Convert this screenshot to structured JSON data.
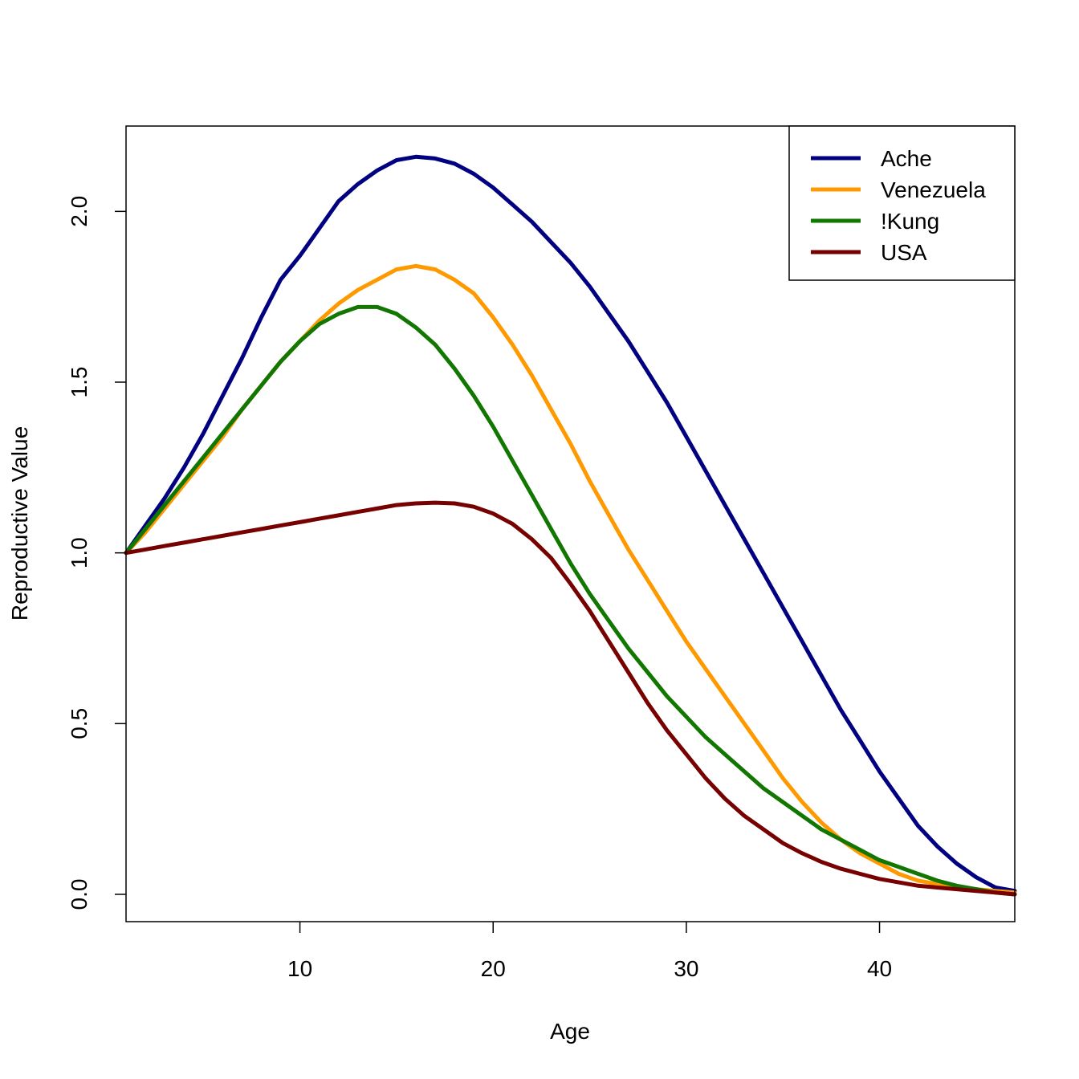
{
  "chart_data": {
    "type": "line",
    "title": "",
    "xlabel": "Age",
    "ylabel": "Reproductive Value",
    "xlim": [
      1,
      47
    ],
    "ylim": [
      -0.08,
      2.25
    ],
    "xticks": [
      10,
      20,
      30,
      40
    ],
    "yticks": [
      0.0,
      0.5,
      1.0,
      1.5,
      2.0
    ],
    "ytick_labels": [
      "0.0",
      "0.5",
      "1.0",
      "1.5",
      "2.0"
    ],
    "grid": false,
    "legend_position": "top-right",
    "x": [
      1,
      2,
      3,
      4,
      5,
      6,
      7,
      8,
      9,
      10,
      11,
      12,
      13,
      14,
      15,
      16,
      17,
      18,
      19,
      20,
      21,
      22,
      23,
      24,
      25,
      26,
      27,
      28,
      29,
      30,
      31,
      32,
      33,
      34,
      35,
      36,
      37,
      38,
      39,
      40,
      41,
      42,
      43,
      44,
      45,
      46,
      47
    ],
    "series": [
      {
        "name": "Ache",
        "color": "#000080",
        "values": [
          1.0,
          1.08,
          1.16,
          1.25,
          1.35,
          1.46,
          1.57,
          1.69,
          1.8,
          1.87,
          1.95,
          2.03,
          2.08,
          2.12,
          2.15,
          2.16,
          2.155,
          2.14,
          2.11,
          2.07,
          2.02,
          1.97,
          1.91,
          1.85,
          1.78,
          1.7,
          1.62,
          1.53,
          1.44,
          1.34,
          1.24,
          1.14,
          1.04,
          0.94,
          0.84,
          0.74,
          0.64,
          0.54,
          0.45,
          0.36,
          0.28,
          0.2,
          0.14,
          0.09,
          0.05,
          0.02,
          0.01
        ]
      },
      {
        "name": "Venezuela",
        "color": "#FF9900",
        "values": [
          1.0,
          1.06,
          1.13,
          1.2,
          1.27,
          1.34,
          1.42,
          1.49,
          1.56,
          1.62,
          1.68,
          1.73,
          1.77,
          1.8,
          1.83,
          1.84,
          1.83,
          1.8,
          1.76,
          1.69,
          1.61,
          1.52,
          1.42,
          1.32,
          1.21,
          1.11,
          1.01,
          0.92,
          0.83,
          0.74,
          0.66,
          0.58,
          0.5,
          0.42,
          0.34,
          0.27,
          0.21,
          0.16,
          0.12,
          0.09,
          0.06,
          0.04,
          0.03,
          0.02,
          0.015,
          0.01,
          0.005
        ]
      },
      {
        "name": "!Kung",
        "color": "#117700",
        "values": [
          1.0,
          1.07,
          1.14,
          1.21,
          1.28,
          1.35,
          1.42,
          1.49,
          1.56,
          1.62,
          1.67,
          1.7,
          1.72,
          1.72,
          1.7,
          1.66,
          1.61,
          1.54,
          1.46,
          1.37,
          1.27,
          1.17,
          1.07,
          0.97,
          0.88,
          0.8,
          0.72,
          0.65,
          0.58,
          0.52,
          0.46,
          0.41,
          0.36,
          0.31,
          0.27,
          0.23,
          0.19,
          0.16,
          0.13,
          0.1,
          0.08,
          0.06,
          0.04,
          0.025,
          0.015,
          0.005,
          0.0
        ]
      },
      {
        "name": "USA",
        "color": "#770000",
        "values": [
          1.0,
          1.01,
          1.02,
          1.03,
          1.04,
          1.05,
          1.06,
          1.07,
          1.08,
          1.09,
          1.1,
          1.11,
          1.12,
          1.13,
          1.14,
          1.145,
          1.147,
          1.145,
          1.135,
          1.115,
          1.085,
          1.04,
          0.985,
          0.91,
          0.83,
          0.74,
          0.65,
          0.56,
          0.48,
          0.41,
          0.34,
          0.28,
          0.23,
          0.19,
          0.15,
          0.12,
          0.095,
          0.075,
          0.06,
          0.045,
          0.035,
          0.025,
          0.02,
          0.015,
          0.01,
          0.005,
          0.0
        ]
      }
    ]
  }
}
